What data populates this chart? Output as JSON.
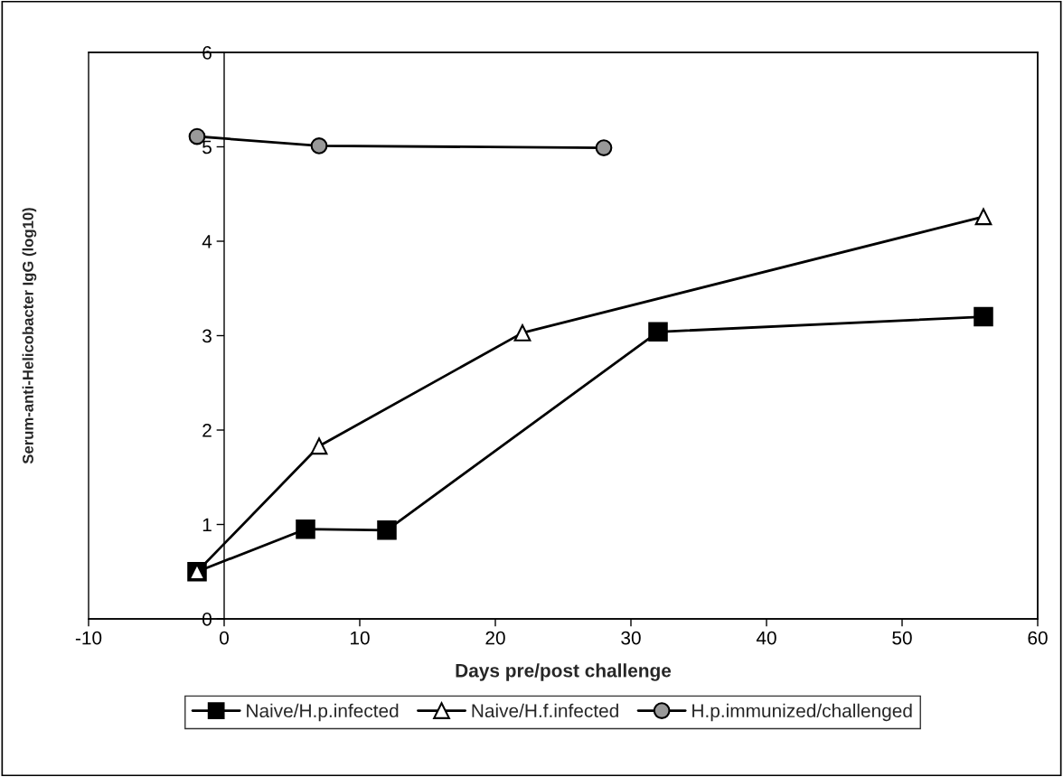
{
  "chart_data": {
    "type": "line",
    "xlabel": "Days pre/post challenge",
    "ylabel": "Serum-anti-Helicobacter IgG (log10)",
    "xlim": [
      -10,
      60
    ],
    "xticks": [
      -10,
      0,
      10,
      20,
      30,
      40,
      50,
      60
    ],
    "ylim": [
      0,
      6
    ],
    "yticks": [
      0,
      1,
      2,
      3,
      4,
      5,
      6
    ],
    "grid": false,
    "legend": "bottom",
    "line_style": "solid",
    "series": [
      {
        "name": "Naive/H.p.infected",
        "color": "#000000",
        "marker": "square",
        "x": [
          -2,
          6,
          12,
          32,
          56
        ],
        "values": [
          0.5,
          0.95,
          0.94,
          3.04,
          3.2
        ]
      },
      {
        "name": "Naive/H.f.infected",
        "color": "#ffffff",
        "marker": "triangle",
        "x": [
          -2,
          7,
          22,
          56
        ],
        "values": [
          0.5,
          1.83,
          3.03,
          4.26
        ]
      },
      {
        "name": "H.p.immunized/challenged",
        "color": "#999999",
        "marker": "circle",
        "x": [
          -2,
          7,
          28
        ],
        "values": [
          5.11,
          5.01,
          4.99
        ]
      }
    ]
  }
}
